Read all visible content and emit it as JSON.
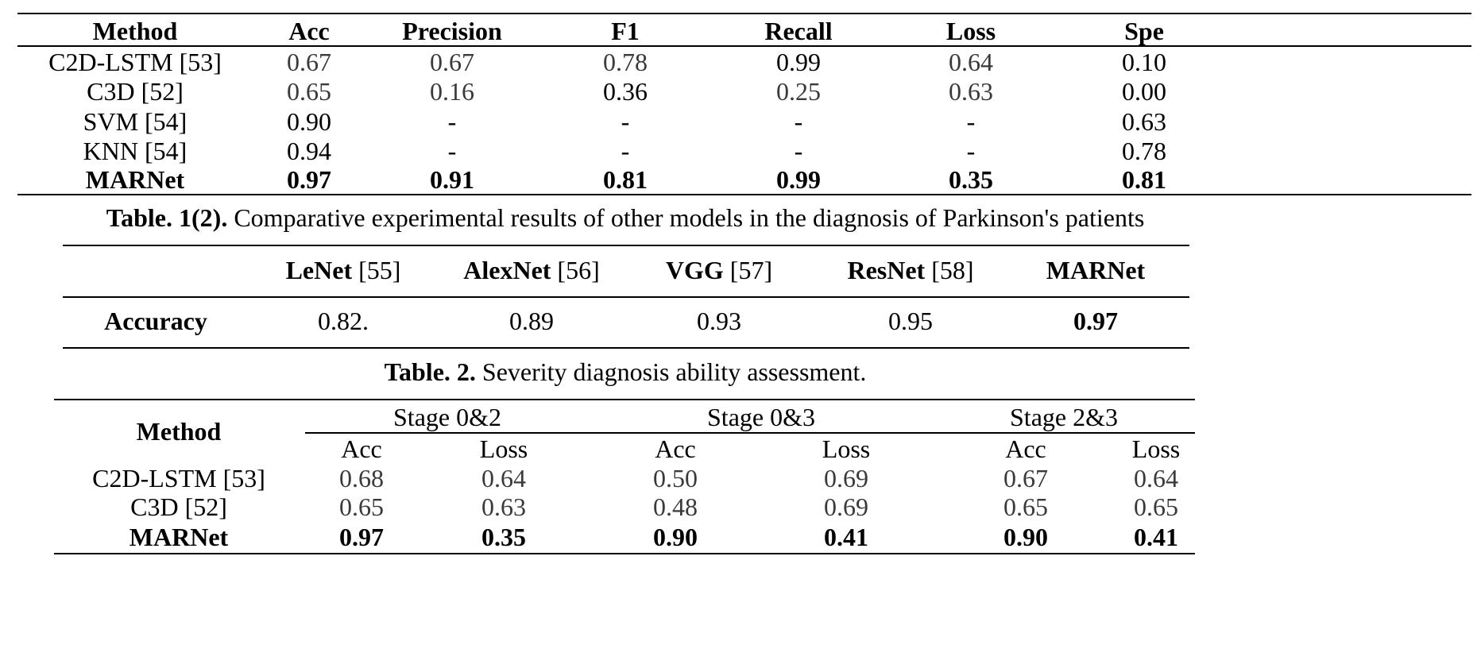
{
  "table1": {
    "headers": [
      "Method",
      "Acc",
      "Precision",
      "F1",
      "Recall",
      "Loss",
      "Spe"
    ],
    "rows": [
      [
        "C2D-LSTM [53]",
        "0.67",
        "0.67",
        "0.78",
        "0.99",
        "0.64",
        "0.10"
      ],
      [
        "C3D [52]",
        "0.65",
        "0.16",
        "0.36",
        "0.25",
        "0.63",
        "0.00"
      ],
      [
        "SVM [54]",
        "0.90",
        "-",
        "-",
        "-",
        "-",
        "0.63"
      ],
      [
        "KNN [54]",
        "0.94",
        "-",
        "-",
        "-",
        "-",
        "0.78"
      ],
      [
        "MARNet",
        "0.97",
        "0.91",
        "0.81",
        "0.99",
        "0.35",
        "0.81"
      ]
    ],
    "caption_label": "Table. 1(2).",
    "caption_text": "Comparative experimental results of other models in the diagnosis of Parkinson's patients"
  },
  "table2": {
    "columns": [
      {
        "name": "LeNet",
        "ref": "[55]"
      },
      {
        "name": "AlexNet",
        "ref": "[56]"
      },
      {
        "name": "VGG",
        "ref": "[57]"
      },
      {
        "name": "ResNet",
        "ref": "[58]"
      },
      {
        "name": "MARNet",
        "ref": ""
      }
    ],
    "row_label": "Accuracy",
    "values": [
      "0.82.",
      "0.89",
      "0.93",
      "0.95",
      "0.97"
    ],
    "caption_label": "Table. 2.",
    "caption_text": "Severity diagnosis ability assessment."
  },
  "table3": {
    "method_header": "Method",
    "stages": [
      "Stage 0&2",
      "Stage 0&3",
      "Stage 2&3"
    ],
    "subheaders": [
      "Acc",
      "Loss",
      "Acc",
      "Loss",
      "Acc",
      "Loss"
    ],
    "rows": [
      [
        "C2D-LSTM  [53]",
        "0.68",
        "0.64",
        "0.50",
        "0.69",
        "0.67",
        "0.64"
      ],
      [
        "C3D  [52]",
        "0.65",
        "0.63",
        "0.48",
        "0.69",
        "0.65",
        "0.65"
      ],
      [
        "MARNet",
        "0.97",
        "0.35",
        "0.90",
        "0.41",
        "0.90",
        "0.41"
      ]
    ]
  }
}
